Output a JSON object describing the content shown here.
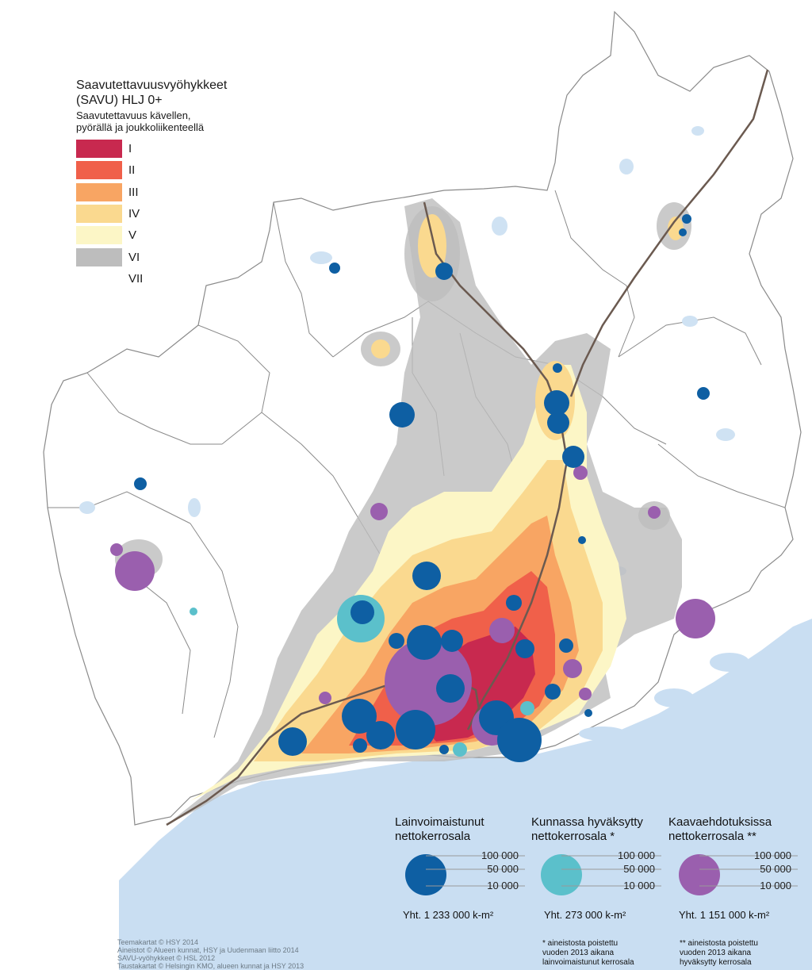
{
  "legend": {
    "title_line1": "Saavutettavuusvyöhykkeet",
    "title_line2": "(SAVU) HLJ 0+",
    "subtitle_line1": "Saavutettavuus kävellen,",
    "subtitle_line2": "pyörällä ja joukkoliikenteellä",
    "zones": [
      {
        "label": "I",
        "color": "#c8294f"
      },
      {
        "label": "II",
        "color": "#f0604a"
      },
      {
        "label": "III",
        "color": "#f8a563"
      },
      {
        "label": "IV",
        "color": "#fad98f"
      },
      {
        "label": "V",
        "color": "#fcf6c6"
      },
      {
        "label": "VI",
        "color": "#bdbdbd"
      },
      {
        "label": "VII",
        "color": "#ffffff"
      }
    ]
  },
  "bubble_legends": [
    {
      "title_line1": "Lainvoimaistunut",
      "title_line2": "nettokerrosala",
      "color": "#0e5fa3",
      "scale_values": [
        "100 000",
        "50 000",
        "10 000"
      ],
      "total": "Yht. 1 233 000 k-m²",
      "note_lines": []
    },
    {
      "title_line1": "Kunnassa hyväksytty",
      "title_line2": "nettokerrosala *",
      "color": "#5bc0cb",
      "scale_values": [
        "100 000",
        "50 000",
        "10 000"
      ],
      "total": "Yht. 273 000 k-m²",
      "note_lines": [
        "* aineistosta poistettu",
        "vuoden 2013 aikana",
        "lainvoimaistunut kerrosala"
      ]
    },
    {
      "title_line1": "Kaavaehdotuksissa",
      "title_line2": "nettokerrosala **",
      "color": "#9a5fae",
      "scale_values": [
        "100 000",
        "50 000",
        "10 000"
      ],
      "total": "Yht. 1 151 000 k-m²",
      "note_lines": [
        "** aineistosta poistettu",
        "vuoden 2013 aikana",
        "hyväksytty kerrosala"
      ]
    }
  ],
  "credits": [
    "Teemakartat © HSY 2014",
    "Aineistot © Alueen kunnat, HSY ja Uudenmaan liitto 2014",
    "SAVU-vyöhykkeet © HSL 2012",
    "Taustakartat © Helsingin KMO, alueen kunnat ja HSY 2013"
  ],
  "colors": {
    "sea": "#c9def2",
    "land": "#ffffff",
    "boundary": "#8a8a8a",
    "railway": "#6b5a50",
    "lake": "#cfe2f3"
  }
}
